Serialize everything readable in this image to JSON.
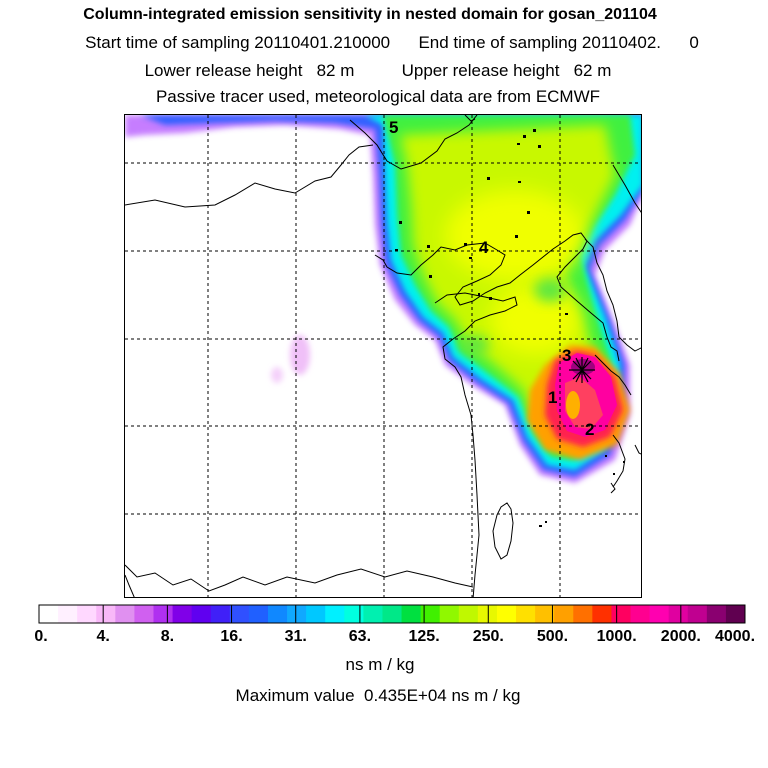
{
  "header": {
    "title": "Column-integrated emission sensitivity in nested domain for gosan_201104",
    "line2": "Start time of sampling 20110401.210000      End time of sampling 20110402.      0",
    "line3": "Lower release height   82 m          Upper release height   62 m",
    "line4": "Passive tracer used, meteorological data are from ECMWF"
  },
  "map": {
    "markers": [
      {
        "label": "1"
      },
      {
        "label": "2"
      },
      {
        "label": "3"
      },
      {
        "label": "4"
      },
      {
        "label": "5"
      }
    ],
    "receptor_icon": "star-burst-icon",
    "gridlines": "dashed"
  },
  "colorbar": {
    "tick_labels": [
      "0.",
      "4.",
      "8.",
      "16.",
      "31.",
      "63.",
      "125.",
      "250.",
      "500.",
      "1000.",
      "2000.",
      "4000."
    ],
    "colors": [
      "#ffffff",
      "#fff0ff",
      "#ffd8ff",
      "#f8b8f8",
      "#e090f0",
      "#d060f0",
      "#b030f0",
      "#8000e8",
      "#6000f0",
      "#4020f8",
      "#3050ff",
      "#2060ff",
      "#1088ff",
      "#10a8ff",
      "#00c8ff",
      "#00f0ff",
      "#00ffe0",
      "#00f0b0",
      "#00e888",
      "#00e040",
      "#40f000",
      "#90f800",
      "#c0f800",
      "#e8f800",
      "#ffff00",
      "#ffe000",
      "#ffc000",
      "#ffa000",
      "#ff7000",
      "#ff3000",
      "#ff0060",
      "#ff0090",
      "#ff00b0",
      "#e000a0",
      "#c00090",
      "#8a0070",
      "#600050"
    ],
    "units": "ns m / kg"
  },
  "max_value_text": "Maximum value  0.435E+04 ns m / kg"
}
